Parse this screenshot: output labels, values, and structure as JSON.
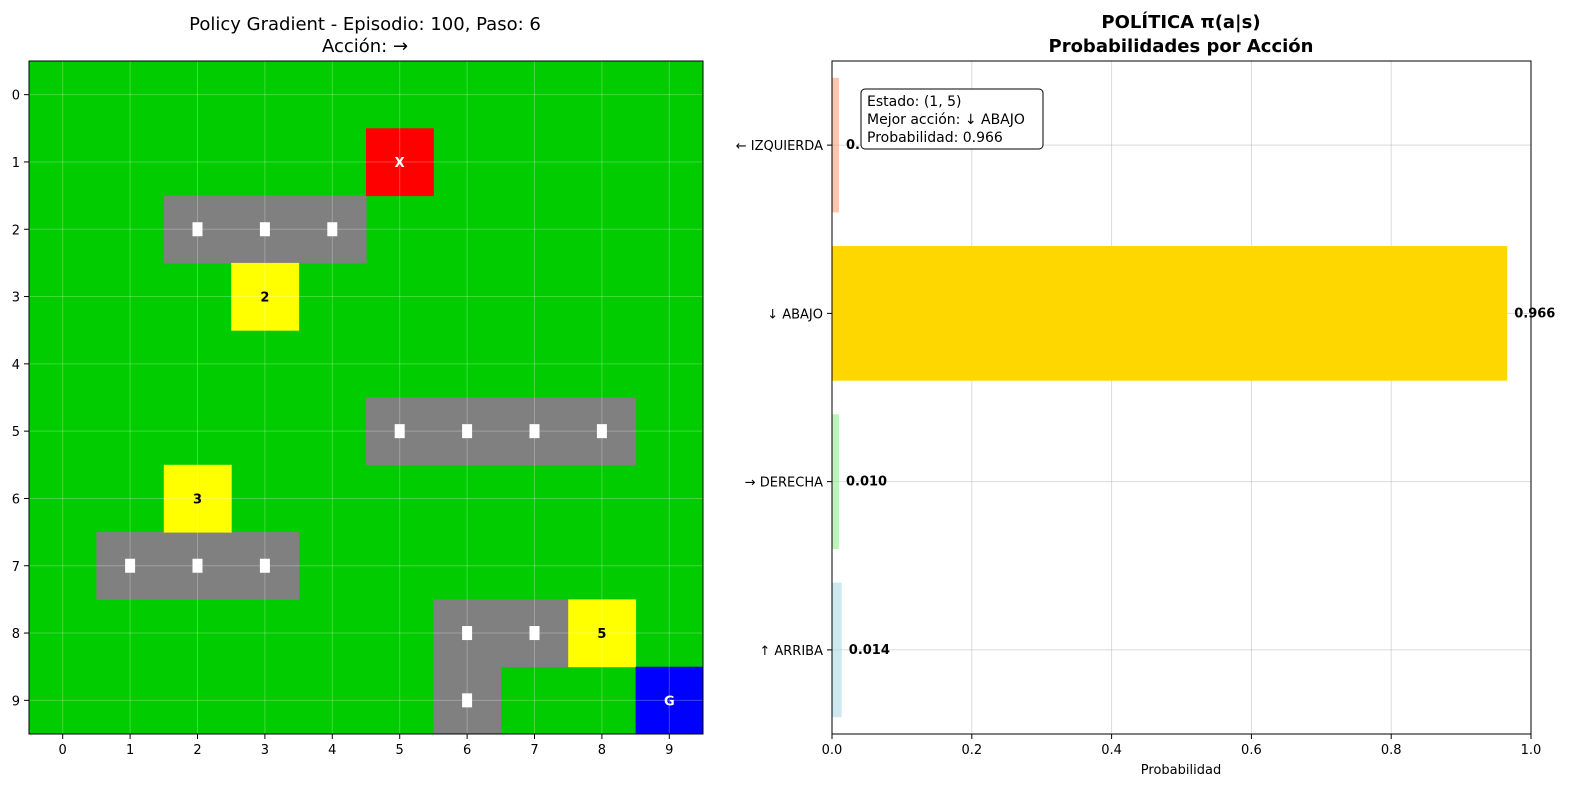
{
  "chart_data": [
    {
      "type": "heatmap",
      "title": "Policy Gradient - Episodio: 100, Paso: 6",
      "subtitle": "Acción: →",
      "rows": 10,
      "cols": 10,
      "x_ticks": [
        "0",
        "1",
        "2",
        "3",
        "4",
        "5",
        "6",
        "7",
        "8",
        "9"
      ],
      "y_ticks": [
        "0",
        "1",
        "2",
        "3",
        "4",
        "5",
        "6",
        "7",
        "8",
        "9"
      ],
      "grid": true,
      "colors": {
        "free": "#00cc00",
        "wall": "#808080",
        "agent": "#ff0000",
        "reward": "#ffff00",
        "goal": "#0000ff",
        "marker": "#ffffff"
      },
      "agent": {
        "row": 1,
        "col": 5,
        "label": "X"
      },
      "goal": {
        "row": 9,
        "col": 9,
        "label": "G"
      },
      "walls": [
        [
          2,
          2
        ],
        [
          2,
          3
        ],
        [
          2,
          4
        ],
        [
          5,
          5
        ],
        [
          5,
          6
        ],
        [
          5,
          7
        ],
        [
          5,
          8
        ],
        [
          7,
          1
        ],
        [
          7,
          2
        ],
        [
          7,
          3
        ],
        [
          8,
          6
        ],
        [
          8,
          7
        ],
        [
          9,
          6
        ]
      ],
      "rewards": [
        {
          "row": 3,
          "col": 3,
          "label": "2"
        },
        {
          "row": 6,
          "col": 2,
          "label": "3"
        },
        {
          "row": 8,
          "col": 8,
          "label": "5"
        }
      ]
    },
    {
      "type": "bar",
      "orientation": "horizontal",
      "title": "POLÍTICA π(a|s)",
      "subtitle": "Probabilidades por Acción",
      "xlabel": "Probabilidad",
      "xlim": [
        0,
        1.0
      ],
      "x_ticks": [
        "0.0",
        "0.2",
        "0.4",
        "0.6",
        "0.8",
        "1.0"
      ],
      "x_tick_values": [
        0,
        0.2,
        0.4,
        0.6,
        0.8,
        1.0
      ],
      "grid": true,
      "categories": [
        "↑ ARRIBA",
        "→ DERECHA",
        "↓ ABAJO",
        "← IZQUIERDA"
      ],
      "values": [
        0.014,
        0.01,
        0.966,
        0.01
      ],
      "value_labels": [
        "0.014",
        "0.010",
        "0.966",
        "0.010"
      ],
      "colors": [
        "#add8e6",
        "#90ee90",
        "#ffd700",
        "#ffa07a"
      ],
      "annotation": {
        "line1": "Estado: (1, 5)",
        "line2": "Mejor acción: ↓ ABAJO",
        "line3": "Probabilidad: 0.966",
        "placement": "top-left"
      }
    }
  ]
}
